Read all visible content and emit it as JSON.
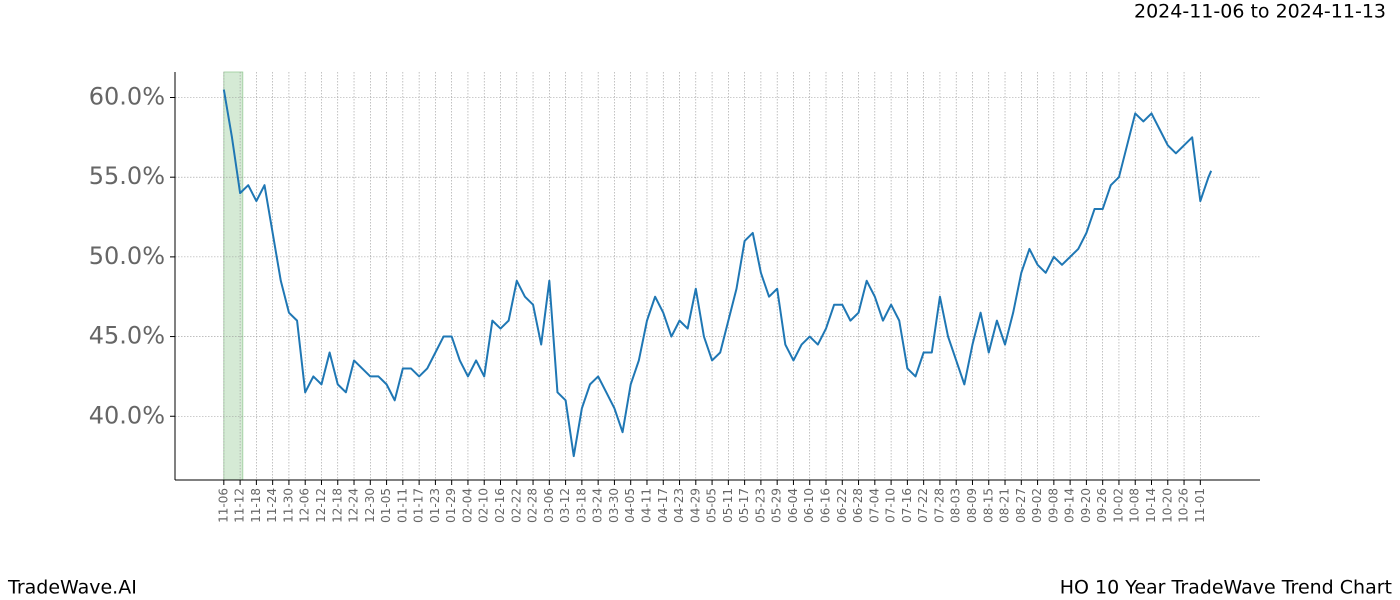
{
  "header": {
    "date_range": "2024-11-06 to 2024-11-13"
  },
  "footer": {
    "brand": "TradeWave.AI",
    "chart_name": "HO 10 Year TradeWave Trend Chart"
  },
  "chart_data": {
    "type": "line",
    "grid": true,
    "highlight": [
      0,
      7
    ],
    "highlight_color": "#d5ead5",
    "x": [
      0,
      3,
      6,
      9,
      12,
      15,
      18,
      21,
      24,
      27,
      30,
      33,
      36,
      39,
      42,
      45,
      48,
      51,
      54,
      57,
      60,
      63,
      66,
      69,
      72,
      75,
      78,
      81,
      84,
      87,
      90,
      93,
      96,
      99,
      102,
      105,
      108,
      111,
      114,
      117,
      120,
      123,
      126,
      129,
      132,
      135,
      138,
      141,
      144,
      147,
      150,
      153,
      156,
      159,
      162,
      165,
      168,
      171,
      174,
      177,
      180,
      183,
      186,
      189,
      192,
      195,
      198,
      201,
      204,
      207,
      210,
      213,
      216,
      219,
      222,
      225,
      228,
      231,
      234,
      237,
      240,
      243,
      246,
      249,
      252,
      255,
      258,
      261,
      264,
      267,
      270,
      273,
      276,
      279,
      282,
      285,
      288,
      291,
      294,
      297,
      300,
      303,
      306,
      309,
      312,
      315,
      318,
      321,
      324,
      327,
      330,
      333,
      336,
      339,
      342,
      345,
      348,
      351,
      354,
      357,
      360,
      363,
      364
    ],
    "series": [
      {
        "color": "#1f77b4",
        "values": [
          60.5,
          57.5,
          54,
          54.5,
          53.5,
          54.5,
          51.5,
          48.5,
          46.5,
          46,
          41.5,
          42.5,
          42,
          44,
          42,
          41.5,
          43.5,
          43,
          42.5,
          42.5,
          42,
          41,
          43,
          43,
          42.5,
          43,
          44,
          45,
          45,
          43.5,
          42.5,
          43.5,
          42.5,
          46,
          45.5,
          46,
          48.5,
          47.5,
          47,
          44.5,
          48.5,
          41.5,
          41,
          37.5,
          40.5,
          42,
          42.5,
          41.5,
          40.5,
          39,
          42,
          43.5,
          46,
          47.5,
          46.5,
          45,
          46,
          45.5,
          48,
          45,
          43.5,
          44,
          46,
          48,
          51,
          51.5,
          49,
          47.5,
          48,
          44.5,
          43.5,
          44.5,
          45,
          44.5,
          45.5,
          47,
          47,
          46,
          46.5,
          48.5,
          47.5,
          46,
          47,
          46,
          43,
          42.5,
          44,
          44,
          47.5,
          45,
          43.5,
          42,
          44.5,
          46.5,
          44,
          46,
          44.5,
          46.5,
          49,
          50.5,
          49.5,
          49,
          50,
          49.5,
          50,
          50.5,
          51.5,
          53,
          53,
          54.5,
          55,
          57,
          59,
          58.5,
          59,
          58,
          57,
          56.5,
          57,
          57.5,
          53.5,
          55,
          55.4
        ]
      }
    ],
    "xlim": [
      -18,
      382
    ],
    "ylim": [
      36,
      61.6
    ],
    "yticks": [
      {
        "value": 40,
        "label": "40.0%"
      },
      {
        "value": 45,
        "label": "45.0%"
      },
      {
        "value": 50,
        "label": "50.0%"
      },
      {
        "value": 55,
        "label": "55.0%"
      },
      {
        "value": 60,
        "label": "60.0%"
      }
    ],
    "xticks": [
      {
        "value": 0,
        "label": "11-06"
      },
      {
        "value": 6,
        "label": "11-12"
      },
      {
        "value": 12,
        "label": "11-18"
      },
      {
        "value": 18,
        "label": "11-24"
      },
      {
        "value": 24,
        "label": "11-30"
      },
      {
        "value": 30,
        "label": "12-06"
      },
      {
        "value": 36,
        "label": "12-12"
      },
      {
        "value": 42,
        "label": "12-18"
      },
      {
        "value": 48,
        "label": "12-24"
      },
      {
        "value": 54,
        "label": "12-30"
      },
      {
        "value": 60,
        "label": "01-05"
      },
      {
        "value": 66,
        "label": "01-11"
      },
      {
        "value": 72,
        "label": "01-17"
      },
      {
        "value": 78,
        "label": "01-23"
      },
      {
        "value": 84,
        "label": "01-29"
      },
      {
        "value": 90,
        "label": "02-04"
      },
      {
        "value": 96,
        "label": "02-10"
      },
      {
        "value": 102,
        "label": "02-16"
      },
      {
        "value": 108,
        "label": "02-22"
      },
      {
        "value": 114,
        "label": "02-28"
      },
      {
        "value": 120,
        "label": "03-06"
      },
      {
        "value": 126,
        "label": "03-12"
      },
      {
        "value": 132,
        "label": "03-18"
      },
      {
        "value": 138,
        "label": "03-24"
      },
      {
        "value": 144,
        "label": "03-30"
      },
      {
        "value": 150,
        "label": "04-05"
      },
      {
        "value": 156,
        "label": "04-11"
      },
      {
        "value": 162,
        "label": "04-17"
      },
      {
        "value": 168,
        "label": "04-23"
      },
      {
        "value": 174,
        "label": "04-29"
      },
      {
        "value": 180,
        "label": "05-05"
      },
      {
        "value": 186,
        "label": "05-11"
      },
      {
        "value": 192,
        "label": "05-17"
      },
      {
        "value": 198,
        "label": "05-23"
      },
      {
        "value": 204,
        "label": "05-29"
      },
      {
        "value": 210,
        "label": "06-04"
      },
      {
        "value": 216,
        "label": "06-10"
      },
      {
        "value": 222,
        "label": "06-16"
      },
      {
        "value": 228,
        "label": "06-22"
      },
      {
        "value": 234,
        "label": "06-28"
      },
      {
        "value": 240,
        "label": "07-04"
      },
      {
        "value": 246,
        "label": "07-10"
      },
      {
        "value": 252,
        "label": "07-16"
      },
      {
        "value": 258,
        "label": "07-22"
      },
      {
        "value": 264,
        "label": "07-28"
      },
      {
        "value": 270,
        "label": "08-03"
      },
      {
        "value": 276,
        "label": "08-09"
      },
      {
        "value": 282,
        "label": "08-15"
      },
      {
        "value": 288,
        "label": "08-21"
      },
      {
        "value": 294,
        "label": "08-27"
      },
      {
        "value": 300,
        "label": "09-02"
      },
      {
        "value": 306,
        "label": "09-08"
      },
      {
        "value": 312,
        "label": "09-14"
      },
      {
        "value": 318,
        "label": "09-20"
      },
      {
        "value": 324,
        "label": "09-26"
      },
      {
        "value": 330,
        "label": "10-02"
      },
      {
        "value": 336,
        "label": "10-08"
      },
      {
        "value": 342,
        "label": "10-14"
      },
      {
        "value": 348,
        "label": "10-20"
      },
      {
        "value": 354,
        "label": "10-26"
      },
      {
        "value": 360,
        "label": "11-01"
      }
    ]
  }
}
